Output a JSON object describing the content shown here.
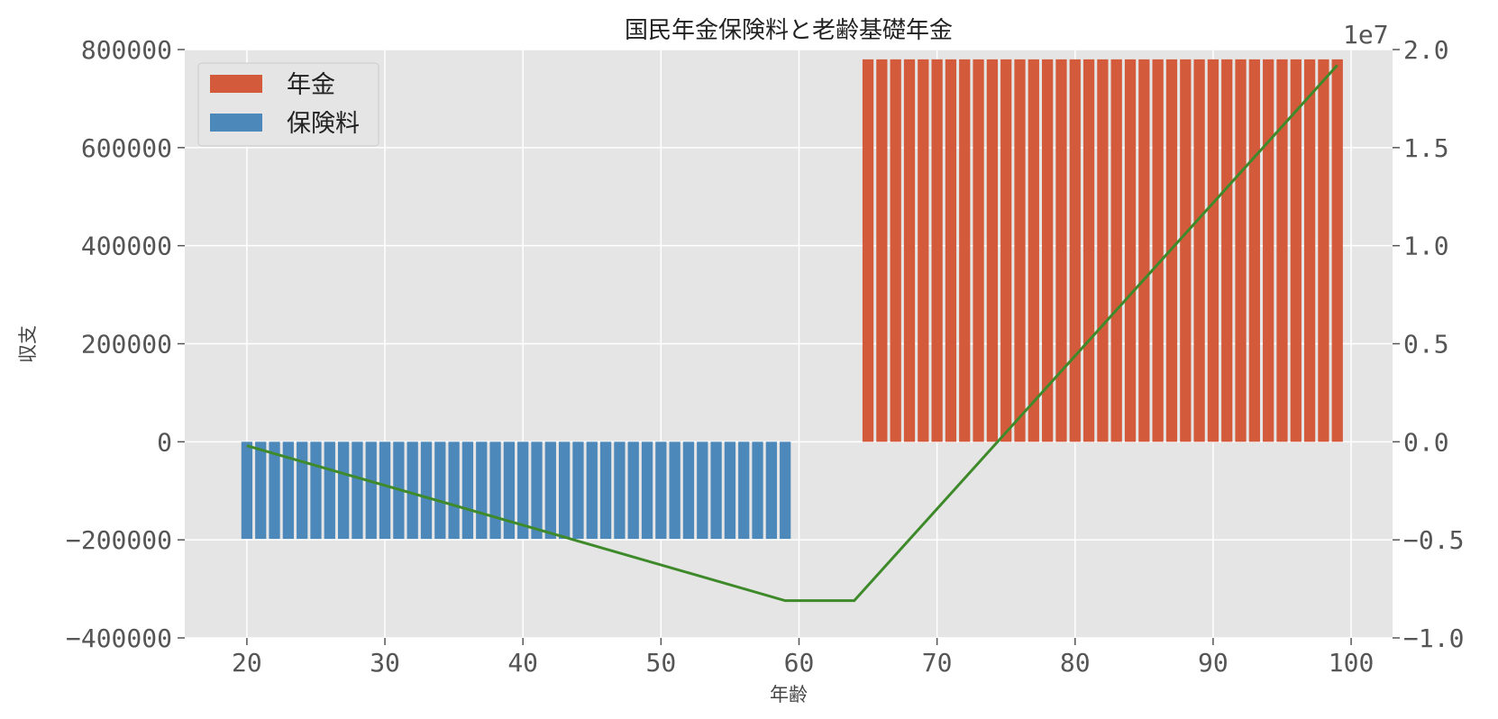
{
  "chart_data": {
    "type": "bar",
    "title": "国民年金保険料と老齢基礎年金",
    "xlabel": "年齢",
    "ylabel": "収支",
    "ylabel_right": "",
    "right_axis_offset_text": "1e7",
    "xlim": [
      15.5,
      103
    ],
    "ylim": [
      -400000,
      800000
    ],
    "ylim_right": [
      -1.0,
      2.0
    ],
    "x_ticks": [
      "20",
      "30",
      "40",
      "50",
      "60",
      "70",
      "80",
      "90",
      "100"
    ],
    "y_ticks": [
      "−400000",
      "−200000",
      "0",
      "200000",
      "400000",
      "600000",
      "800000"
    ],
    "y_ticks_right": [
      "−1.0",
      "−0.5",
      "0.0",
      "0.5",
      "1.0",
      "1.5",
      "2.0"
    ],
    "grid": true,
    "legend_position": "upper-left",
    "colors": {
      "background": "#e5e5e5",
      "grid": "#ffffff",
      "pension": "#d35b3c",
      "premium": "#4d88ba",
      "cumulative": "#3e8a2a"
    },
    "series": [
      {
        "name": "年金",
        "kind": "bar",
        "x_start": 65,
        "x_end": 99,
        "value": 780000
      },
      {
        "name": "保険料",
        "kind": "bar",
        "x_start": 20,
        "x_end": 59,
        "value": -198000
      },
      {
        "kind": "line",
        "axis": "right",
        "x": [
          20,
          59,
          64,
          99
        ],
        "y": [
          -0.02,
          -0.81,
          -0.81,
          1.92
        ]
      }
    ]
  }
}
